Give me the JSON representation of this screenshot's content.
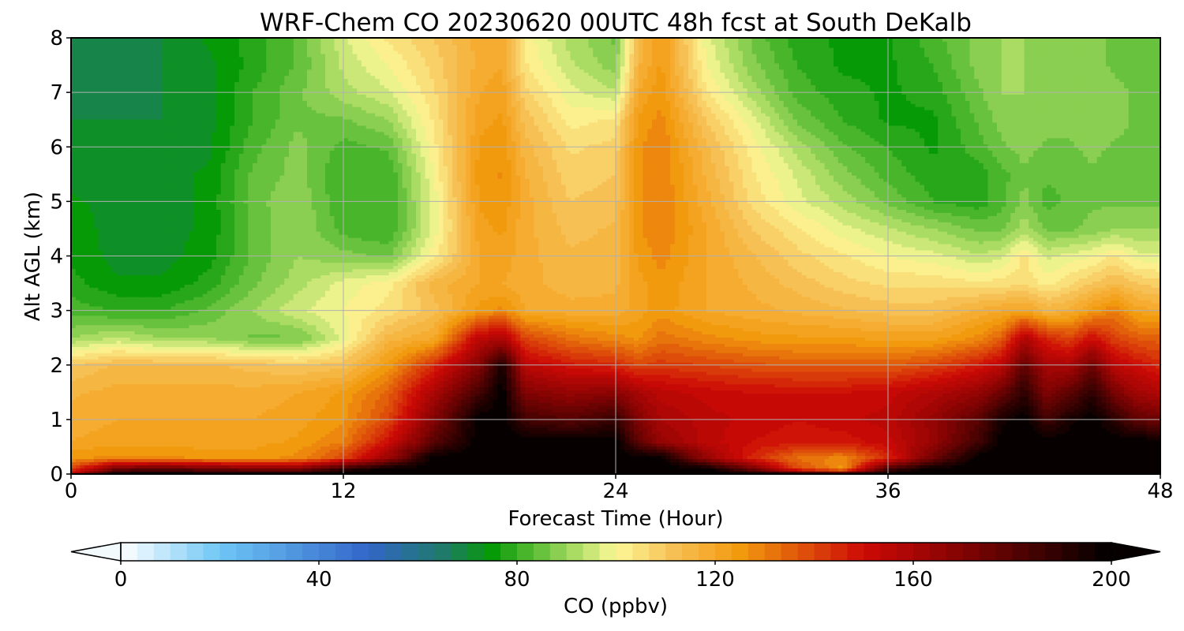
{
  "chart_data": {
    "type": "heatmap",
    "title": "WRF-Chem CO  20230620 00UTC 48h fcst at South DeKalb",
    "xlabel": "Forecast Time (Hour)",
    "ylabel": "Alt AGL (km)",
    "xlim": [
      0,
      48
    ],
    "ylim": [
      0,
      8
    ],
    "x_ticks": [
      0,
      12,
      24,
      36,
      48
    ],
    "x_tick_labels": [
      "0",
      "12",
      "24",
      "36",
      "48"
    ],
    "y_ticks": [
      0,
      1,
      2,
      3,
      4,
      5,
      6,
      7,
      8
    ],
    "y_tick_labels": [
      "0",
      "1",
      "2",
      "3",
      "4",
      "5",
      "6",
      "7",
      "8"
    ],
    "grid": true,
    "x": [
      0,
      2,
      4,
      6,
      8,
      10,
      12,
      14,
      16,
      18,
      19,
      20,
      22,
      24,
      25,
      26,
      28,
      30,
      32,
      34,
      36,
      38,
      40,
      41,
      42,
      43,
      44,
      45,
      46,
      47,
      48
    ],
    "y": [
      0,
      0.1,
      0.3,
      0.6,
      1,
      1.5,
      2,
      2.5,
      3,
      3.5,
      4,
      4.5,
      5,
      5.5,
      6,
      6.5,
      7,
      7.5,
      8
    ],
    "z": [
      [
        158,
        200,
        200,
        200,
        200,
        200,
        200,
        200,
        200,
        200,
        200,
        200,
        200,
        200,
        200,
        200,
        200,
        200,
        200,
        200,
        200,
        200,
        200,
        200,
        200,
        200,
        200,
        200,
        200,
        200,
        200
      ],
      [
        140,
        175,
        180,
        175,
        172,
        170,
        190,
        200,
        200,
        200,
        200,
        200,
        200,
        200,
        200,
        200,
        200,
        175,
        140,
        125,
        185,
        200,
        200,
        200,
        200,
        200,
        200,
        200,
        200,
        200,
        200
      ],
      [
        126,
        128,
        128,
        126,
        125,
        128,
        140,
        165,
        200,
        200,
        200,
        200,
        200,
        200,
        200,
        200,
        165,
        145,
        132,
        128,
        145,
        175,
        200,
        200,
        200,
        200,
        200,
        200,
        200,
        200,
        200
      ],
      [
        120,
        122,
        122,
        121,
        122,
        124,
        130,
        150,
        180,
        200,
        200,
        200,
        200,
        200,
        178,
        165,
        155,
        150,
        148,
        148,
        152,
        165,
        185,
        200,
        200,
        200,
        200,
        200,
        200,
        200,
        200
      ],
      [
        118,
        120,
        120,
        120,
        120,
        122,
        126,
        140,
        170,
        200,
        200,
        185,
        180,
        188,
        170,
        160,
        155,
        152,
        150,
        152,
        155,
        165,
        180,
        195,
        200,
        185,
        195,
        200,
        190,
        178,
        175
      ],
      [
        116,
        118,
        118,
        118,
        118,
        120,
        124,
        135,
        160,
        185,
        200,
        170,
        165,
        168,
        160,
        155,
        152,
        150,
        150,
        150,
        152,
        158,
        165,
        175,
        190,
        170,
        178,
        190,
        172,
        162,
        158
      ],
      [
        110,
        114,
        114,
        114,
        112,
        110,
        112,
        125,
        145,
        170,
        195,
        155,
        148,
        145,
        140,
        142,
        140,
        138,
        136,
        136,
        136,
        140,
        148,
        155,
        178,
        160,
        160,
        175,
        155,
        150,
        145
      ],
      [
        90,
        94,
        90,
        90,
        86,
        86,
        98,
        115,
        120,
        155,
        158,
        140,
        132,
        128,
        126,
        132,
        128,
        125,
        124,
        124,
        122,
        122,
        128,
        135,
        158,
        145,
        140,
        150,
        140,
        136,
        135
      ],
      [
        82,
        80,
        80,
        84,
        90,
        96,
        100,
        105,
        112,
        125,
        128,
        120,
        118,
        118,
        122,
        125,
        120,
        118,
        116,
        114,
        112,
        112,
        118,
        120,
        122,
        116,
        118,
        125,
        130,
        122,
        120
      ],
      [
        78,
        74,
        74,
        78,
        86,
        92,
        98,
        102,
        115,
        120,
        120,
        118,
        115,
        116,
        122,
        126,
        120,
        116,
        112,
        108,
        106,
        106,
        104,
        105,
        106,
        102,
        106,
        110,
        114,
        110,
        108
      ],
      [
        76,
        72,
        72,
        75,
        84,
        90,
        88,
        86,
        102,
        120,
        122,
        118,
        114,
        115,
        124,
        128,
        120,
        114,
        108,
        104,
        100,
        98,
        94,
        96,
        104,
        96,
        98,
        100,
        104,
        98,
        98
      ],
      [
        75,
        72,
        72,
        74,
        84,
        90,
        82,
        80,
        98,
        122,
        124,
        118,
        112,
        114,
        126,
        130,
        120,
        110,
        104,
        98,
        94,
        90,
        86,
        86,
        92,
        86,
        86,
        88,
        90,
        90,
        90
      ],
      [
        74,
        72,
        72,
        74,
        85,
        90,
        80,
        80,
        98,
        124,
        126,
        118,
        110,
        112,
        126,
        130,
        118,
        106,
        98,
        92,
        86,
        80,
        78,
        82,
        88,
        82,
        84,
        86,
        86,
        86,
        86
      ],
      [
        72,
        70,
        72,
        74,
        84,
        88,
        80,
        80,
        100,
        125,
        127,
        117,
        108,
        110,
        126,
        130,
        116,
        104,
        96,
        88,
        82,
        78,
        78,
        82,
        86,
        84,
        84,
        86,
        84,
        86,
        86
      ],
      [
        70,
        70,
        70,
        72,
        82,
        88,
        82,
        84,
        102,
        124,
        126,
        115,
        106,
        108,
        126,
        130,
        114,
        102,
        92,
        84,
        80,
        76,
        82,
        86,
        88,
        86,
        86,
        88,
        86,
        86,
        86
      ],
      [
        70,
        70,
        70,
        72,
        80,
        86,
        86,
        90,
        104,
        122,
        124,
        112,
        102,
        104,
        124,
        128,
        110,
        98,
        86,
        80,
        76,
        76,
        84,
        88,
        90,
        88,
        88,
        90,
        88,
        86,
        86
      ],
      [
        68,
        68,
        70,
        72,
        80,
        86,
        92,
        96,
        106,
        120,
        122,
        108,
        98,
        94,
        120,
        126,
        104,
        92,
        82,
        78,
        76,
        78,
        86,
        90,
        90,
        88,
        88,
        88,
        88,
        86,
        86
      ],
      [
        68,
        68,
        70,
        72,
        78,
        84,
        94,
        100,
        108,
        118,
        120,
        104,
        94,
        88,
        116,
        124,
        100,
        88,
        80,
        76,
        76,
        80,
        88,
        90,
        90,
        88,
        88,
        88,
        86,
        84,
        84
      ],
      [
        68,
        68,
        70,
        74,
        78,
        84,
        96,
        104,
        110,
        118,
        120,
        102,
        92,
        86,
        114,
        124,
        98,
        86,
        78,
        76,
        76,
        82,
        88,
        90,
        90,
        88,
        88,
        88,
        86,
        84,
        84
      ]
    ],
    "colorbar": {
      "label": "CO  (ppbv)",
      "vmin": 0,
      "vmax": 200,
      "ticks": [
        0,
        40,
        80,
        120,
        160,
        200
      ],
      "tick_labels": [
        "0",
        "40",
        "80",
        "120",
        "160",
        "200"
      ],
      "extend": "both",
      "levels": 60,
      "color_stops": [
        {
          "v": 0,
          "c": "#ffffff"
        },
        {
          "v": 20,
          "c": "#6ec6f5"
        },
        {
          "v": 50,
          "c": "#3266c8"
        },
        {
          "v": 65,
          "c": "#1f7a6a"
        },
        {
          "v": 75,
          "c": "#069a06"
        },
        {
          "v": 90,
          "c": "#9ad65a"
        },
        {
          "v": 100,
          "c": "#fcf896"
        },
        {
          "v": 112,
          "c": "#f7be52"
        },
        {
          "v": 125,
          "c": "#f29a0e"
        },
        {
          "v": 150,
          "c": "#cd0a06"
        },
        {
          "v": 170,
          "c": "#820303"
        },
        {
          "v": 200,
          "c": "#000000"
        }
      ]
    }
  }
}
